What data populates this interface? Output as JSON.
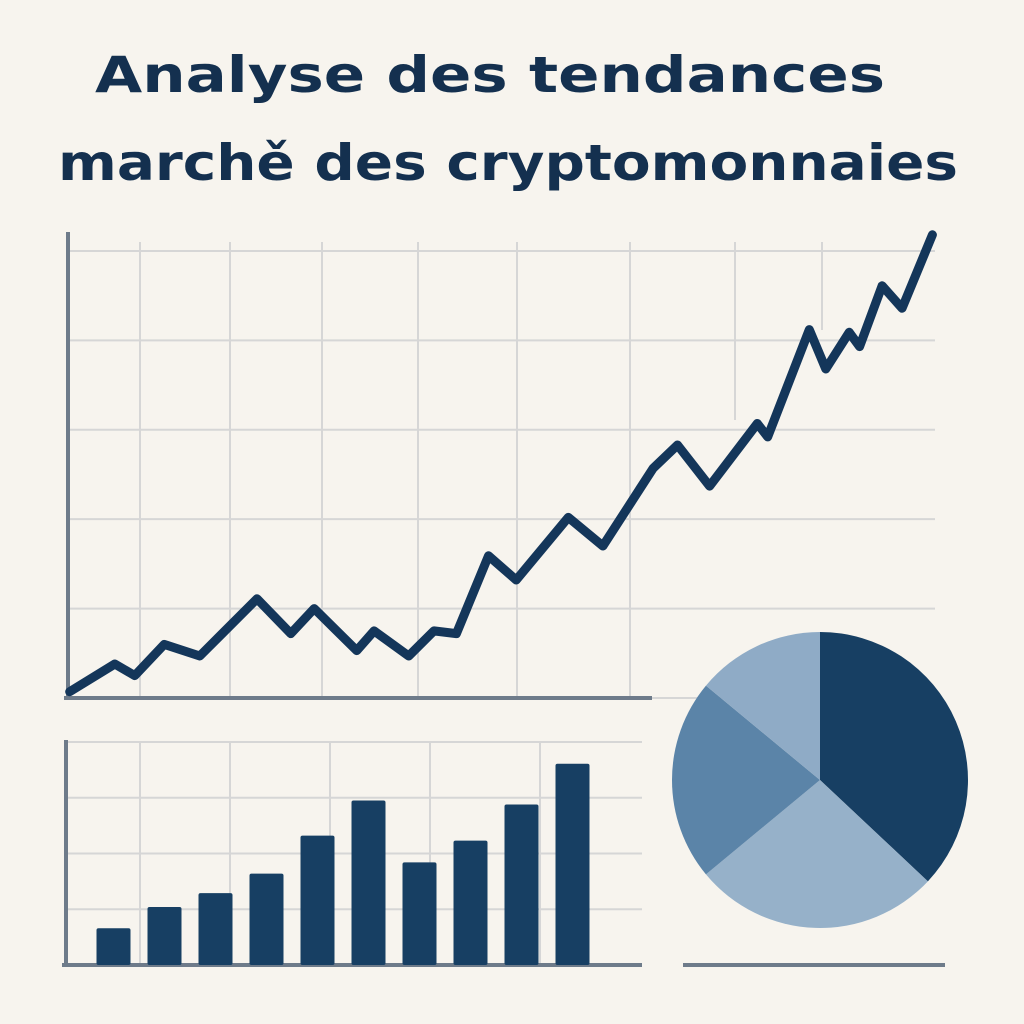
{
  "title_lines": [
    "Analyse des tendances",
    "marchě des cryptomonnaies"
  ],
  "chart_data": [
    {
      "type": "line",
      "color": "#14365a",
      "grid": true,
      "x": [
        0.02,
        0.54,
        0.77,
        1.11,
        1.52,
        2.18,
        2.57,
        2.84,
        3.33,
        3.53,
        3.93,
        4.22,
        4.48,
        4.85,
        5.17,
        5.77,
        6.17,
        6.75,
        7.03,
        7.4,
        7.95,
        8.07,
        8.55,
        8.74,
        9.01,
        9.13,
        9.39,
        9.62,
        9.97
      ],
      "values": [
        0.07,
        0.38,
        0.25,
        0.6,
        0.47,
        1.11,
        0.72,
        1.0,
        0.53,
        0.75,
        0.47,
        0.75,
        0.72,
        1.59,
        1.32,
        2.02,
        1.7,
        2.57,
        2.83,
        2.37,
        3.07,
        2.92,
        4.12,
        3.68,
        4.09,
        3.93,
        4.61,
        4.36,
        5.18
      ],
      "xlim": [
        0,
        10
      ],
      "ylim": [
        0,
        5.1
      ],
      "yticks": [
        0,
        1,
        2,
        3,
        4,
        5
      ]
    },
    {
      "type": "bar",
      "color": "#173f63",
      "grid": true,
      "categories": [
        null,
        null,
        null,
        null,
        null,
        null,
        null,
        null,
        null,
        null
      ],
      "values": [
        0.66,
        1.04,
        1.29,
        1.64,
        2.32,
        2.95,
        1.84,
        2.23,
        2.88,
        3.61
      ],
      "ylim": [
        0,
        4
      ],
      "yticks": [
        0,
        1,
        2,
        3,
        4
      ]
    },
    {
      "type": "pie",
      "values": [
        37,
        27,
        22,
        14
      ],
      "colors": [
        "#173f63",
        "#96b1c9",
        "#5b84a8",
        "#8fabc6"
      ]
    }
  ]
}
